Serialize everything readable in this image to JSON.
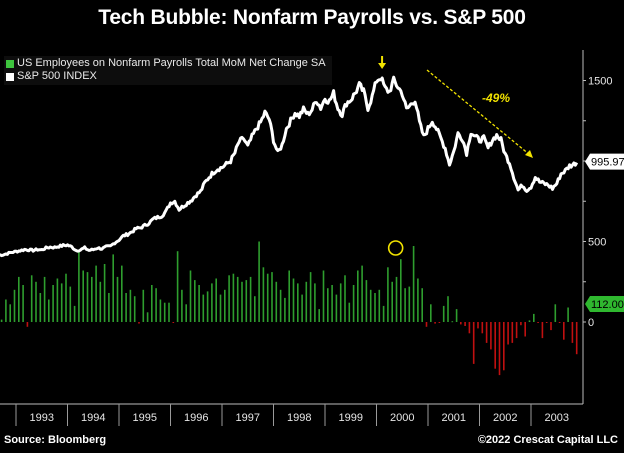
{
  "title": "Tech Bubble: Nonfarm Payrolls vs. S&P 500",
  "footer": {
    "source": "Source: Bloomberg",
    "copyright": "©2022 Crescat Capital LLC"
  },
  "colors": {
    "background": "#000000",
    "payrolls_positive": "#2e9e2e",
    "payrolls_negative": "#c01010",
    "sp500": "#ffffff",
    "annotation": "#f2e300",
    "last_payroll_badge": "#2fb82f"
  },
  "chart_data": {
    "type": "bar+line",
    "title": "Tech Bubble: Nonfarm Payrolls vs. S&P 500",
    "xlabel": "",
    "ylabel": "",
    "x_tick_labels": [
      "1993",
      "1994",
      "1995",
      "1996",
      "1997",
      "1998",
      "1999",
      "2000",
      "2001",
      "2002",
      "2003"
    ],
    "y_ticks": [
      0,
      500,
      1500
    ],
    "ylim": [
      -350,
      1620
    ],
    "legend": {
      "placement": "top-left",
      "entries": [
        {
          "label": "US Employees on Nonfarm Payrolls Total MoM Net Change SA",
          "color": "#2e9e2e"
        },
        {
          "label": "S&P 500 INDEX",
          "color": "#ffffff"
        }
      ]
    },
    "last_values": {
      "sp500": "995.97",
      "payrolls": "112.00"
    },
    "annotations": {
      "decline_label": "-49%",
      "peak_arrow": "peak-marker",
      "circle": "payroll-peak"
    },
    "series": [
      {
        "name": "S&P 500 INDEX",
        "kind": "line",
        "start": "1992-09",
        "frequency": "monthly",
        "values": [
          415,
          418,
          425,
          433,
          438,
          443,
          450,
          448,
          445,
          450,
          448,
          460,
          465,
          463,
          470,
          475,
          478,
          466,
          445,
          448,
          460,
          445,
          450,
          460,
          455,
          466,
          470,
          492,
          510,
          535,
          545,
          560,
          580,
          585,
          600,
          615,
          640,
          650,
          660,
          690,
          740,
          750,
          700,
          720,
          740,
          760,
          790,
          810,
          865,
          900,
          930,
          950,
          960,
          980,
          1000,
          1050,
          1120,
          1140,
          1090,
          1150,
          1200,
          1240,
          1300,
          1260,
          1130,
          1050,
          1100,
          1200,
          1250,
          1300,
          1280,
          1320,
          1290,
          1320,
          1380,
          1330,
          1390,
          1370,
          1420,
          1330,
          1290,
          1360,
          1380,
          1420,
          1470,
          1430,
          1330,
          1400,
          1500,
          1520,
          1450,
          1430,
          1500,
          1460,
          1420,
          1320,
          1350,
          1380,
          1240,
          1150,
          1200,
          1250,
          1200,
          1140,
          1080,
          980,
          1060,
          1170,
          1140,
          1050,
          1180,
          1150,
          1130,
          1140,
          1080,
          1130,
          1160,
          1130,
          1040,
          990,
          900,
          820,
          850,
          820,
          840,
          900,
          870,
          860,
          850,
          830,
          860,
          920,
          940,
          970,
          980,
          1000,
          990,
          980,
          1010,
          1000,
          996
        ]
      },
      {
        "name": "US Employees on Nonfarm Payrolls Total MoM Net Change SA",
        "kind": "bar",
        "start": "1992-09",
        "frequency": "monthly",
        "unit": "thousands",
        "values": [
          15,
          140,
          110,
          200,
          280,
          230,
          -30,
          290,
          250,
          180,
          280,
          140,
          230,
          270,
          240,
          300,
          220,
          100,
          440,
          320,
          310,
          280,
          350,
          250,
          360,
          180,
          420,
          280,
          350,
          180,
          200,
          160,
          -10,
          200,
          60,
          230,
          210,
          140,
          120,
          120,
          -5,
          440,
          200,
          110,
          320,
          260,
          230,
          170,
          190,
          240,
          270,
          170,
          200,
          290,
          300,
          280,
          250,
          260,
          280,
          160,
          500,
          340,
          300,
          310,
          250,
          200,
          150,
          320,
          270,
          240,
          170,
          250,
          310,
          240,
          80,
          320,
          210,
          230,
          170,
          240,
          290,
          120,
          230,
          320,
          350,
          260,
          200,
          180,
          200,
          100,
          340,
          250,
          280,
          390,
          210,
          220,
          472,
          270,
          210,
          -30,
          110,
          -10,
          -5,
          100,
          160,
          5,
          80,
          -15,
          -25,
          -70,
          -260,
          -40,
          -70,
          -130,
          -170,
          -290,
          -330,
          -300,
          -140,
          -130,
          -100,
          -20,
          -90,
          10,
          50,
          -5,
          -100,
          -5,
          -50,
          110,
          -5,
          -110,
          90,
          -130,
          -200,
          -80,
          -20,
          10,
          5,
          -5,
          -15,
          -40,
          112
        ]
      }
    ]
  }
}
